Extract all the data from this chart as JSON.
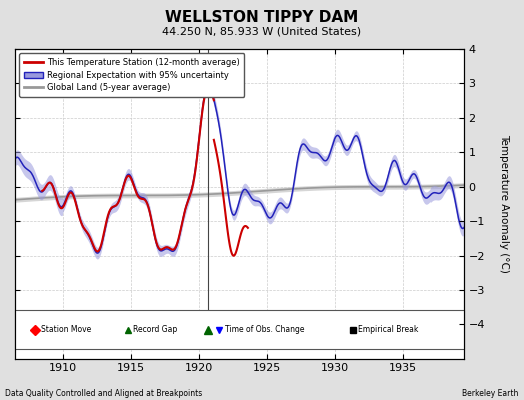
{
  "title": "WELLSTON TIPPY DAM",
  "subtitle": "44.250 N, 85.933 W (United States)",
  "xlabel_left": "Data Quality Controlled and Aligned at Breakpoints",
  "xlabel_right": "Berkeley Earth",
  "ylabel": "Temperature Anomaly (°C)",
  "xlim": [
    1906.5,
    1939.5
  ],
  "ylim": [
    -5,
    4
  ],
  "yticks": [
    -4,
    -3,
    -2,
    -1,
    0,
    1,
    2,
    3,
    4
  ],
  "xticks": [
    1910,
    1915,
    1920,
    1925,
    1930,
    1935
  ],
  "bg_color": "#e0e0e0",
  "plot_bg_color": "#ffffff",
  "regional_color": "#2222bb",
  "regional_fill_color": "#9999dd",
  "station_color": "#cc0000",
  "global_color": "#999999",
  "global_fill_color": "#cccccc",
  "vline_x": 1920.7,
  "record_gap_x": 1920.7,
  "record_gap_marker_y": -4.15,
  "station_start": 1908.5,
  "station_end_seg1": 1921.1,
  "station_start_seg2": 1921.1,
  "station_end_seg2": 1923.6
}
